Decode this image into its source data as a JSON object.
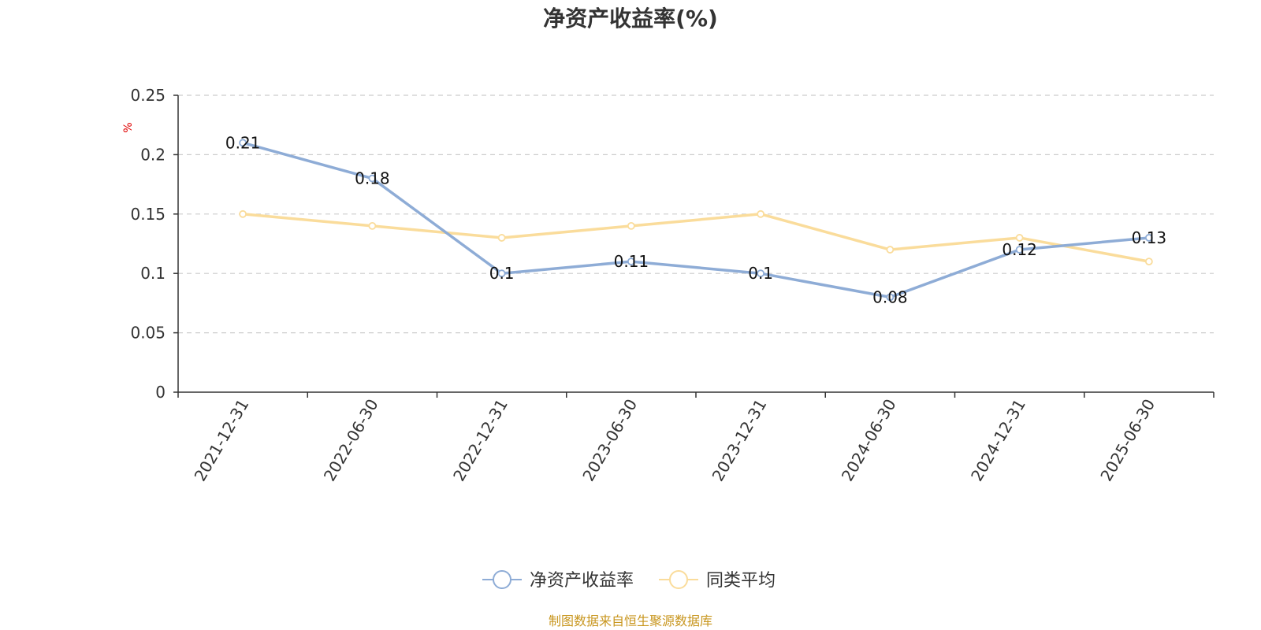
{
  "chart_data": {
    "type": "line",
    "title": "净资产收益率(%)",
    "ylabel": "%",
    "ylim": [
      0,
      0.25
    ],
    "yticks": [
      0,
      0.05,
      0.1,
      0.15,
      0.2,
      0.25
    ],
    "ytick_labels": [
      "0",
      "0.05",
      "0.1",
      "0.15",
      "0.2",
      "0.25"
    ],
    "grid": true,
    "legend_position": "bottom",
    "categories": [
      "2021-12-31",
      "2022-06-30",
      "2022-12-31",
      "2023-06-30",
      "2023-12-31",
      "2024-06-30",
      "2024-12-31",
      "2025-06-30"
    ],
    "series": [
      {
        "name": "净资产收益率",
        "color": "#8eacd6",
        "values": [
          0.21,
          0.18,
          0.1,
          0.11,
          0.1,
          0.08,
          0.12,
          0.13
        ],
        "labels": [
          "0.21",
          "0.18",
          "0.1",
          "0.11",
          "0.1",
          "0.08",
          "0.12",
          "0.13"
        ]
      },
      {
        "name": "同类平均",
        "color": "#fadc9b",
        "values": [
          0.15,
          0.14,
          0.13,
          0.14,
          0.15,
          0.12,
          0.13,
          0.11
        ]
      }
    ]
  },
  "source": {
    "text": "制图数据来自恒生聚源数据库",
    "color": "#c8961e"
  }
}
